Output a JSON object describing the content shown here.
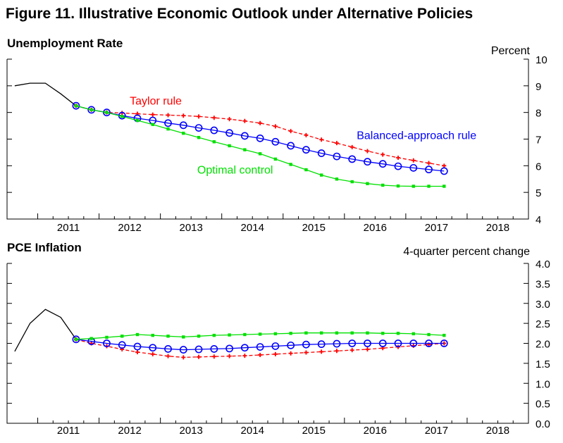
{
  "figure_title": "Figure 11.  Illustrative Economic Outlook under Alternative Policies",
  "colors": {
    "history": "#000000",
    "taylor": "#ff0000",
    "balanced": "#0000ff",
    "optimal": "#00e000"
  },
  "chart_data": [
    {
      "type": "line",
      "title": "Unemployment Rate",
      "ylabel": "Percent",
      "ylim": [
        4,
        10
      ],
      "yticks": [
        4,
        5,
        6,
        7,
        8,
        9,
        10
      ],
      "xlim": [
        2010.5,
        2019.0
      ],
      "year_labels": [
        "2011",
        "2012",
        "2013",
        "2014",
        "2015",
        "2016",
        "2017",
        "2018"
      ],
      "grid": false,
      "series": [
        {
          "key": "history",
          "style": "solid",
          "marker": "none",
          "x": [
            2010.625,
            2010.875,
            2011.125,
            2011.375,
            2011.625
          ],
          "values": [
            9.0,
            9.1,
            9.1,
            8.7,
            8.25
          ]
        },
        {
          "key": "taylor",
          "name": "Taylor rule",
          "style": "dashed",
          "marker": "plus",
          "x": [
            2011.625,
            2011.875,
            2012.125,
            2012.375,
            2012.625,
            2012.875,
            2013.125,
            2013.375,
            2013.625,
            2013.875,
            2014.125,
            2014.375,
            2014.625,
            2014.875,
            2015.125,
            2015.375,
            2015.625,
            2015.875,
            2016.125,
            2016.375,
            2016.625,
            2016.875,
            2017.125,
            2017.375,
            2017.625
          ],
          "values": [
            8.25,
            8.1,
            8.0,
            7.98,
            7.95,
            7.92,
            7.9,
            7.88,
            7.85,
            7.8,
            7.75,
            7.68,
            7.6,
            7.48,
            7.3,
            7.15,
            6.98,
            6.85,
            6.7,
            6.55,
            6.42,
            6.3,
            6.2,
            6.1,
            6.0
          ]
        },
        {
          "key": "balanced",
          "name": "Balanced-approach rule",
          "style": "solid",
          "marker": "circle",
          "x": [
            2011.625,
            2011.875,
            2012.125,
            2012.375,
            2012.625,
            2012.875,
            2013.125,
            2013.375,
            2013.625,
            2013.875,
            2014.125,
            2014.375,
            2014.625,
            2014.875,
            2015.125,
            2015.375,
            2015.625,
            2015.875,
            2016.125,
            2016.375,
            2016.625,
            2016.875,
            2017.125,
            2017.375,
            2017.625
          ],
          "values": [
            8.25,
            8.1,
            8.0,
            7.88,
            7.78,
            7.7,
            7.6,
            7.52,
            7.42,
            7.33,
            7.23,
            7.12,
            7.03,
            6.9,
            6.75,
            6.6,
            6.47,
            6.35,
            6.25,
            6.15,
            6.07,
            5.98,
            5.92,
            5.86,
            5.8
          ]
        },
        {
          "key": "optimal",
          "name": "Optimal control",
          "style": "solid",
          "marker": "dot",
          "x": [
            2011.625,
            2011.875,
            2012.125,
            2012.375,
            2012.625,
            2012.875,
            2013.125,
            2013.375,
            2013.625,
            2013.875,
            2014.125,
            2014.375,
            2014.625,
            2014.875,
            2015.125,
            2015.375,
            2015.625,
            2015.875,
            2016.125,
            2016.375,
            2016.625,
            2016.875,
            2017.125,
            2017.375,
            2017.625
          ],
          "values": [
            8.25,
            8.1,
            8.0,
            7.85,
            7.7,
            7.55,
            7.38,
            7.22,
            7.06,
            6.9,
            6.75,
            6.6,
            6.45,
            6.25,
            6.05,
            5.85,
            5.65,
            5.5,
            5.4,
            5.33,
            5.27,
            5.24,
            5.23,
            5.23,
            5.23
          ]
        }
      ],
      "annotations": [
        {
          "text": "Taylor rule",
          "key": "taylor",
          "x": 2012.5,
          "y": 8.3
        },
        {
          "text": "Balanced-approach rule",
          "key": "balanced",
          "x": 2016.2,
          "y": 7.0
        },
        {
          "text": "Optimal control",
          "key": "optimal",
          "x": 2013.6,
          "y": 5.7
        }
      ]
    },
    {
      "type": "line",
      "title": "PCE Inflation",
      "ylabel": "4-quarter percent change",
      "ylim": [
        0.0,
        4.0
      ],
      "yticks": [
        0.0,
        0.5,
        1.0,
        1.5,
        2.0,
        2.5,
        3.0,
        3.5,
        4.0
      ],
      "xlim": [
        2010.5,
        2019.0
      ],
      "year_labels": [
        "2011",
        "2012",
        "2013",
        "2014",
        "2015",
        "2016",
        "2017",
        "2018"
      ],
      "grid": false,
      "series": [
        {
          "key": "history",
          "style": "solid",
          "marker": "none",
          "x": [
            2010.625,
            2010.875,
            2011.125,
            2011.375,
            2011.625
          ],
          "values": [
            1.8,
            2.5,
            2.85,
            2.65,
            2.1
          ]
        },
        {
          "key": "taylor",
          "name": "Taylor rule",
          "style": "dashed",
          "marker": "plus",
          "x": [
            2011.625,
            2011.875,
            2012.125,
            2012.375,
            2012.625,
            2012.875,
            2013.125,
            2013.375,
            2013.625,
            2013.875,
            2014.125,
            2014.375,
            2014.625,
            2014.875,
            2015.125,
            2015.375,
            2015.625,
            2015.875,
            2016.125,
            2016.375,
            2016.625,
            2016.875,
            2017.125,
            2017.375,
            2017.625
          ],
          "values": [
            2.1,
            2.0,
            1.93,
            1.85,
            1.78,
            1.73,
            1.68,
            1.65,
            1.66,
            1.67,
            1.68,
            1.69,
            1.71,
            1.73,
            1.75,
            1.77,
            1.79,
            1.81,
            1.83,
            1.85,
            1.88,
            1.91,
            1.94,
            1.97,
            2.0
          ]
        },
        {
          "key": "balanced",
          "name": "Balanced-approach rule",
          "style": "solid",
          "marker": "circle",
          "x": [
            2011.625,
            2011.875,
            2012.125,
            2012.375,
            2012.625,
            2012.875,
            2013.125,
            2013.375,
            2013.625,
            2013.875,
            2014.125,
            2014.375,
            2014.625,
            2014.875,
            2015.125,
            2015.375,
            2015.625,
            2015.875,
            2016.125,
            2016.375,
            2016.625,
            2016.875,
            2017.125,
            2017.375,
            2017.625
          ],
          "values": [
            2.1,
            2.05,
            2.0,
            1.96,
            1.92,
            1.89,
            1.86,
            1.84,
            1.85,
            1.86,
            1.87,
            1.89,
            1.91,
            1.93,
            1.95,
            1.97,
            1.98,
            1.99,
            2.0,
            2.0,
            2.0,
            2.0,
            2.0,
            2.0,
            2.0
          ]
        },
        {
          "key": "optimal",
          "name": "Optimal control",
          "style": "solid",
          "marker": "dot",
          "x": [
            2011.625,
            2011.875,
            2012.125,
            2012.375,
            2012.625,
            2012.875,
            2013.125,
            2013.375,
            2013.625,
            2013.875,
            2014.125,
            2014.375,
            2014.625,
            2014.875,
            2015.125,
            2015.375,
            2015.625,
            2015.875,
            2016.125,
            2016.375,
            2016.625,
            2016.875,
            2017.125,
            2017.375,
            2017.625
          ],
          "values": [
            2.1,
            2.12,
            2.15,
            2.18,
            2.22,
            2.2,
            2.18,
            2.16,
            2.18,
            2.2,
            2.21,
            2.22,
            2.23,
            2.24,
            2.25,
            2.26,
            2.26,
            2.26,
            2.26,
            2.26,
            2.25,
            2.25,
            2.24,
            2.22,
            2.2
          ]
        }
      ],
      "annotations": []
    }
  ]
}
